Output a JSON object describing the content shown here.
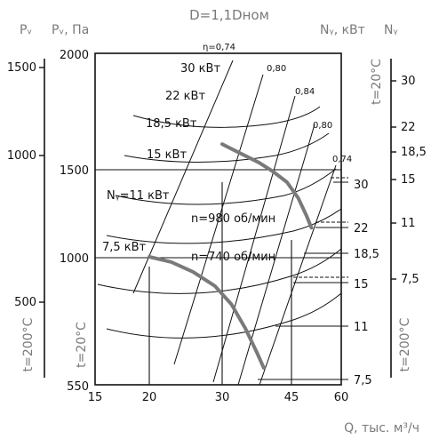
{
  "chart_data": {
    "type": "line",
    "title": "D=1,1Dном",
    "xlabel": "Q, тыс. м³/ч",
    "xlim": [
      15,
      60
    ],
    "xticks": [
      "15",
      "20",
      "30",
      "45",
      "60"
    ],
    "inner_axis": {
      "label": "Pᵥ, Па",
      "ticks": [
        "550",
        "1000",
        "1500",
        "2000"
      ],
      "temp_label": "t=20°C"
    },
    "outer_axis": {
      "label": "Pᵥ",
      "ticks": [
        "500",
        "1000",
        "1500"
      ],
      "temp_label": "t=200°C"
    },
    "right_inner_axis": {
      "label": "Nᵧ, кВт",
      "ticks": [
        "7,5",
        "11",
        "15",
        "18,5",
        "22",
        "30"
      ],
      "temp_label": "t=20°C"
    },
    "right_outer_axis": {
      "label": "Nᵧ",
      "ticks": [
        "7,5",
        "11",
        "15",
        "18,5",
        "22",
        "30"
      ],
      "temp_label": "t=200°C"
    },
    "efficiency_labels": [
      "η=0,74",
      "0,80",
      "0,84",
      "0,80",
      "0,74"
    ],
    "power_labels": [
      "30 кВт",
      "22 кВт",
      "18,5 кВт",
      "15 кВт",
      "Nᵧ=11 кВт",
      "7,5 кВт"
    ],
    "series": [
      {
        "name": "n=980 об/мин",
        "x": [
          30,
          34,
          38,
          41,
          44,
          47,
          49.5,
          51
        ],
        "y": [
          1610,
          1570,
          1530,
          1490,
          1430,
          1340,
          1240,
          1170
        ]
      },
      {
        "name": "n=740 об/мин",
        "x": [
          20,
          23,
          26,
          29,
          32,
          35,
          37.5,
          39
        ],
        "y": [
          1005,
          985,
          950,
          900,
          835,
          750,
          665,
          610
        ]
      }
    ],
    "grid": false
  }
}
